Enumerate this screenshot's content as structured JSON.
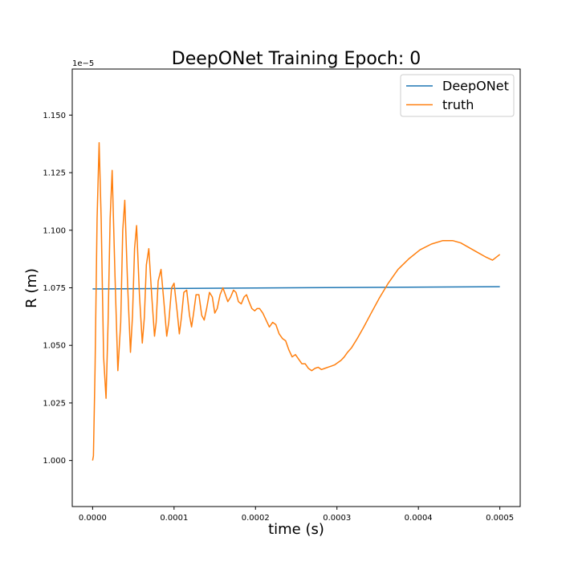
{
  "chart_data": {
    "type": "line",
    "title": "DeepONet Training Epoch: 0",
    "xlabel": "time (s)",
    "ylabel": "R (m)",
    "y_offset_label": "1e−5",
    "xlim": [
      -2.5e-05,
      0.000525
    ],
    "ylim": [
      0.98,
      1.17
    ],
    "xticks": [
      0,
      0.0001,
      0.0002,
      0.0003,
      0.0004,
      0.0005
    ],
    "xtick_labels": [
      "0.0000",
      "0.0001",
      "0.0002",
      "0.0003",
      "0.0004",
      "0.0005"
    ],
    "yticks": [
      1.0,
      1.025,
      1.05,
      1.075,
      1.1,
      1.125,
      1.15
    ],
    "ytick_labels": [
      "1.000",
      "1.025",
      "1.050",
      "1.075",
      "1.100",
      "1.125",
      "1.150"
    ],
    "grid": false,
    "legend_position": "top-right",
    "series": [
      {
        "name": "DeepONet",
        "color": "#1f77b4",
        "x": [
          0,
          0.0005
        ],
        "y": [
          1.0745,
          1.0755
        ]
      },
      {
        "name": "truth",
        "color": "#ff7f0e",
        "x": [
          0,
          1e-06,
          3e-06,
          5.5e-06,
          8e-06,
          1.05e-05,
          1.35e-05,
          1.65e-05,
          1.9e-05,
          2.15e-05,
          2.4e-05,
          2.75e-05,
          3.1e-05,
          3.45e-05,
          3.7e-05,
          3.95e-05,
          4.3e-05,
          4.65e-05,
          4.9e-05,
          5.15e-05,
          5.4e-05,
          5.75e-05,
          6.1e-05,
          6.35e-05,
          6.6e-05,
          6.9e-05,
          7.25e-05,
          7.6e-05,
          7.8e-05,
          8.05e-05,
          8.4e-05,
          8.75e-05,
          9.1e-05,
          9.35e-05,
          9.7e-05,
          0.0001,
          0.000104,
          0.0001065,
          0.000109,
          0.000112,
          0.0001155,
          0.000119,
          0.0001215,
          0.000124,
          0.000127,
          0.0001305,
          0.000134,
          0.000137,
          0.00014,
          0.0001435,
          0.000147,
          0.00015,
          0.000153,
          0.0001565,
          0.00016,
          0.000163,
          0.000166,
          0.0001695,
          0.000173,
          0.000176,
          0.000179,
          0.0001825,
          0.000186,
          0.000189,
          0.000192,
          0.0001955,
          0.000199,
          0.000202,
          0.000205,
          0.000209,
          0.000213,
          0.000217,
          0.000221,
          0.000225,
          0.000229,
          0.000233,
          0.000237,
          0.000241,
          0.000245,
          0.000249,
          0.000253,
          0.000257,
          0.000261,
          0.000265,
          0.000269,
          0.000273,
          0.000277,
          0.000281,
          0.000285,
          0.000289,
          0.000293,
          0.000297,
          0.000301,
          0.000305,
          0.000309,
          0.000313,
          0.000318,
          0.000325,
          0.000333,
          0.000342,
          0.000352,
          0.000363,
          0.000375,
          0.000388,
          0.000402,
          0.000416,
          0.00043,
          0.000442,
          0.000452,
          0.000462,
          0.000472,
          0.000482,
          0.000491,
          0.0005
        ],
        "y": [
          1.0,
          1.002,
          1.04,
          1.105,
          1.138,
          1.105,
          1.045,
          1.027,
          1.06,
          1.105,
          1.126,
          1.08,
          1.039,
          1.06,
          1.1,
          1.113,
          1.076,
          1.047,
          1.063,
          1.092,
          1.102,
          1.072,
          1.051,
          1.062,
          1.085,
          1.092,
          1.072,
          1.054,
          1.06,
          1.078,
          1.083,
          1.069,
          1.054,
          1.06,
          1.075,
          1.077,
          1.064,
          1.055,
          1.062,
          1.073,
          1.074,
          1.063,
          1.058,
          1.064,
          1.072,
          1.072,
          1.063,
          1.061,
          1.066,
          1.073,
          1.071,
          1.064,
          1.066,
          1.072,
          1.075,
          1.072,
          1.069,
          1.071,
          1.074,
          1.073,
          1.069,
          1.068,
          1.071,
          1.072,
          1.069,
          1.066,
          1.065,
          1.066,
          1.066,
          1.064,
          1.061,
          1.058,
          1.06,
          1.059,
          1.055,
          1.053,
          1.052,
          1.048,
          1.045,
          1.046,
          1.044,
          1.042,
          1.042,
          1.04,
          1.039,
          1.04,
          1.0405,
          1.0395,
          1.04,
          1.0405,
          1.041,
          1.0415,
          1.0425,
          1.0435,
          1.045,
          1.047,
          1.049,
          1.053,
          1.058,
          1.064,
          1.0705,
          1.077,
          1.083,
          1.0875,
          1.0915,
          1.094,
          1.0955,
          1.0955,
          1.0945,
          1.0925,
          1.0905,
          1.0885,
          1.087,
          1.0895
        ]
      }
    ]
  }
}
